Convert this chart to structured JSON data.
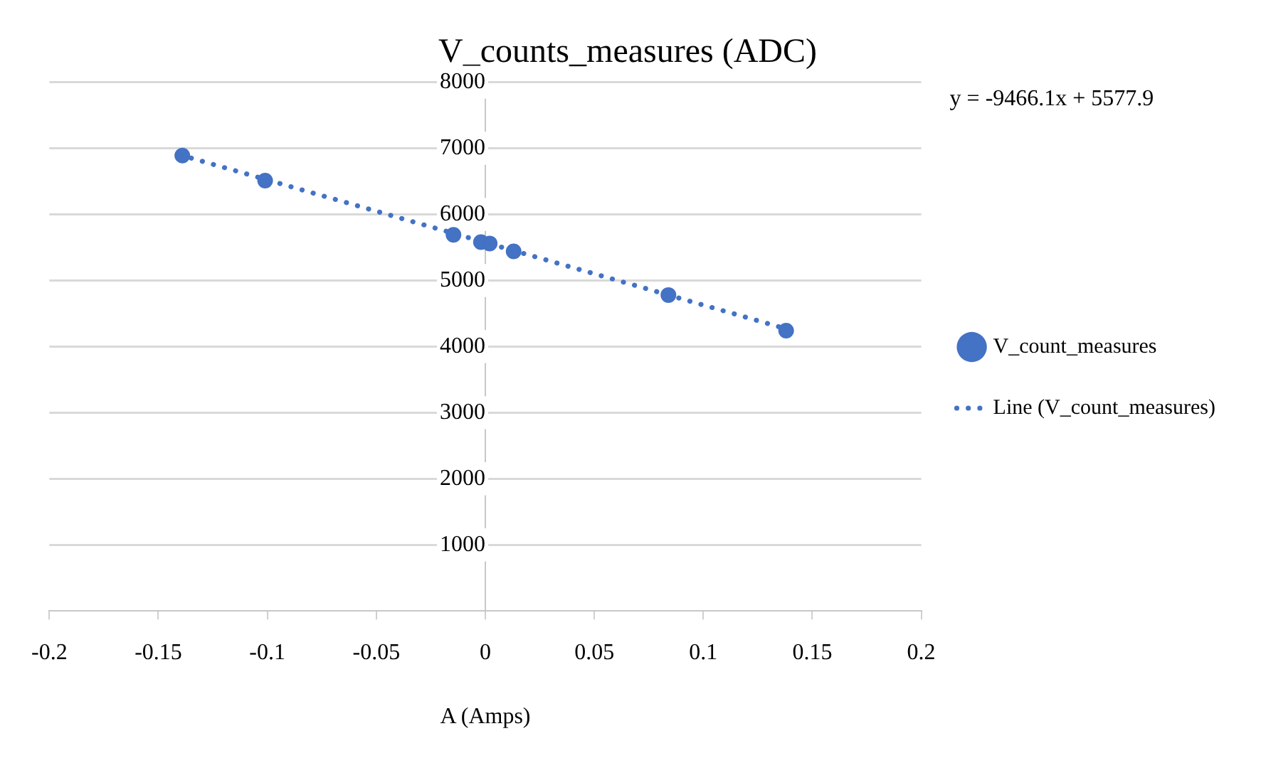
{
  "chart_data": {
    "type": "scatter",
    "title": "V_counts_measures (ADC)",
    "xlabel": "A (Amps)",
    "annotations": [
      "y = -9466.1x + 5577.9"
    ],
    "series": [
      {
        "name": "V_count_measures",
        "color": "#4472c4",
        "x": [
          -0.139,
          -0.101,
          -0.0146,
          -0.002,
          0.002,
          0.013,
          0.084,
          0.138
        ],
        "values": [
          6890,
          6510,
          5690,
          5580,
          5560,
          5440,
          4780,
          4240
        ],
        "marker": "circle"
      },
      {
        "name": "Line (V_count_measures)",
        "type": "line",
        "color": "#4472c4",
        "x": [
          -0.14,
          0.14
        ],
        "values": [
          6900,
          4250
        ],
        "marker": "none",
        "line_style": "dotted"
      }
    ],
    "xlim": [
      -0.2,
      0.2
    ],
    "xticks": [
      -0.2,
      -0.15,
      -0.1,
      -0.05,
      0,
      0.05,
      0.1,
      0.15,
      0.2
    ],
    "ylim": [
      0,
      8000
    ],
    "yticks": [
      {
        "value": 0,
        "label": null
      },
      1000,
      2000,
      3000,
      4000,
      5000,
      6000,
      7000,
      8000
    ],
    "grid": "y",
    "legend": "right"
  }
}
